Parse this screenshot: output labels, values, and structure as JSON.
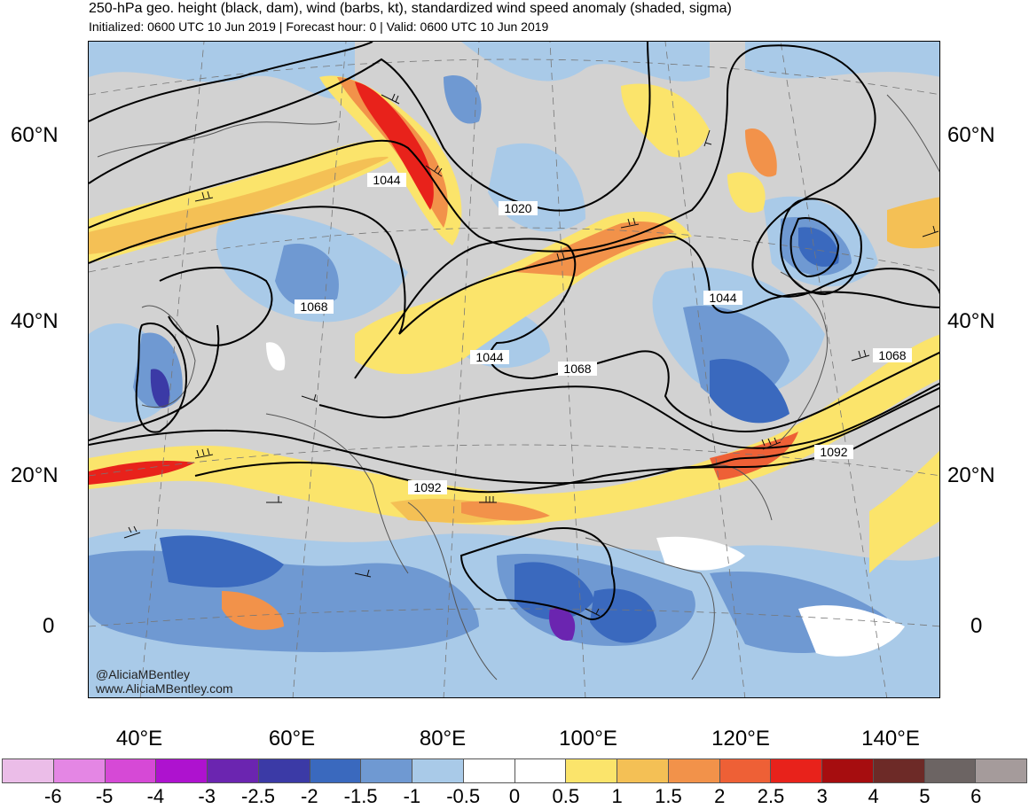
{
  "header": {
    "title": "250-hPa geo. height (black, dam), wind (barbs, kt), standardized wind speed anomaly (shaded, sigma)",
    "subtitle": "Initialized: 0600 UTC 10 Jun 2019 | Forecast hour: 0 | Valid: 0600 UTC 10 Jun 2019"
  },
  "map": {
    "lat_labels": [
      "60°N",
      "40°N",
      "20°N",
      "0"
    ],
    "lon_labels": [
      "40°E",
      "60°E",
      "80°E",
      "100°E",
      "120°E",
      "140°E"
    ],
    "contour_labels": [
      "1020",
      "1044",
      "1068",
      "1044",
      "1068",
      "1044",
      "1068",
      "1092",
      "1092"
    ],
    "credits": [
      "@AliciaMBentley",
      "www.AliciaMBentley.com"
    ]
  },
  "colorbar": {
    "labels": [
      "-6",
      "-5",
      "-4",
      "-3",
      "-2.5",
      "-2",
      "-1.5",
      "-1",
      "-0.5",
      "0",
      "0.5",
      "1",
      "1.5",
      "2",
      "2.5",
      "3",
      "4",
      "5",
      "6"
    ],
    "colors": [
      "#ebbde8",
      "#e486e4",
      "#d649d6",
      "#ae12cf",
      "#6b25b0",
      "#3b3aa6",
      "#3a69be",
      "#6f99d2",
      "#a9cae8",
      "#ffffff",
      "#ffffff",
      "#fbe46b",
      "#f4c055",
      "#f2924a",
      "#ee6036",
      "#e8221b",
      "#a60d0f",
      "#6d2a27",
      "#6c6463",
      "#a59b9b"
    ]
  }
}
